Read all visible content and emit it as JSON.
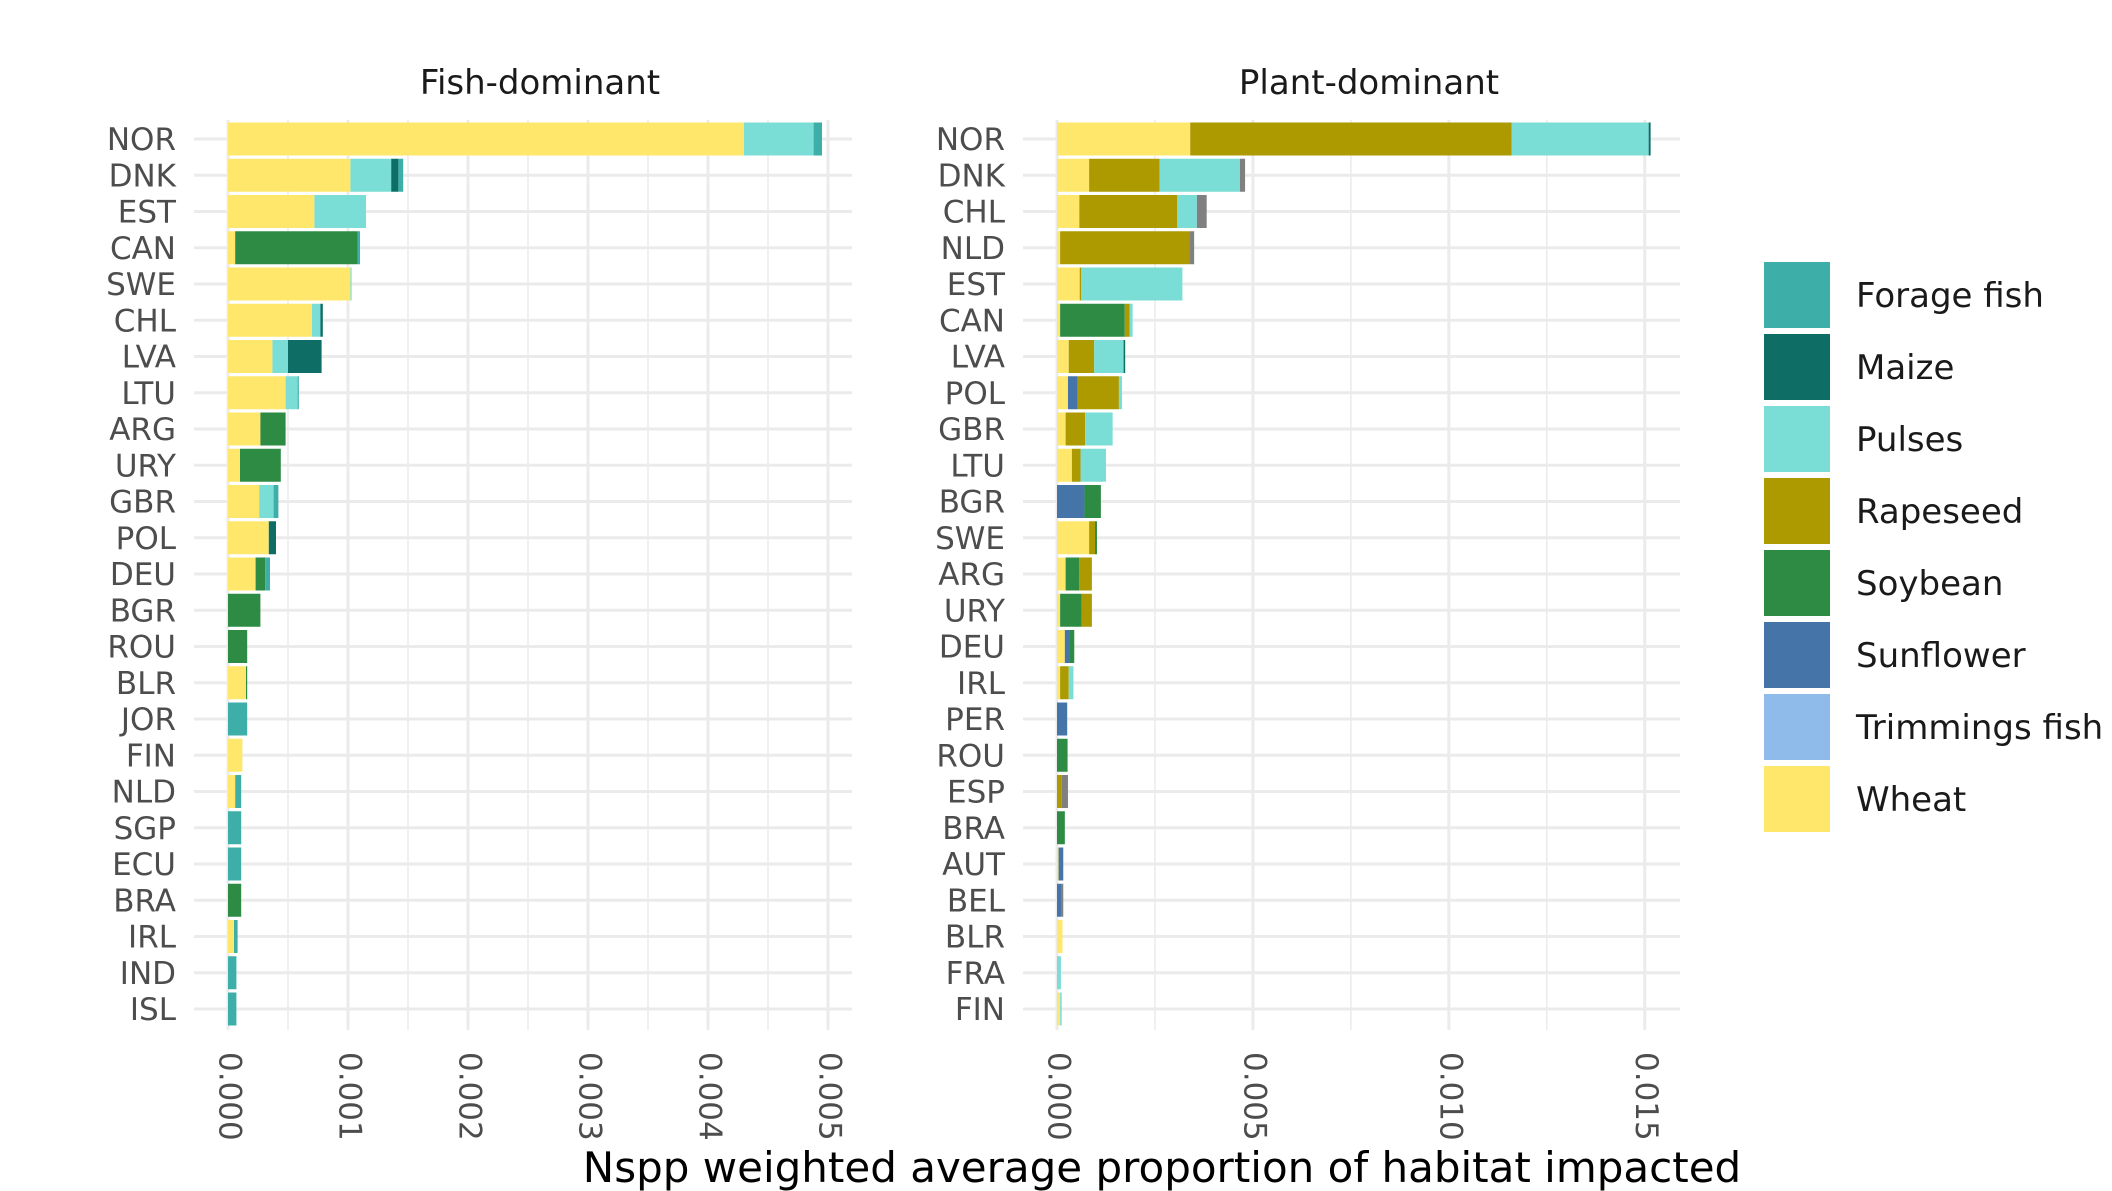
{
  "chart_data": {
    "type": "bar",
    "orientation": "horizontal",
    "stacked": true,
    "xlabel": "Nspp weighted average proportion of habitat impacted",
    "ylabel": "",
    "legend": {
      "position": "right",
      "title": "",
      "entries": [
        {
          "name": "Forage fish",
          "color": "#3dafa8"
        },
        {
          "name": "Maize",
          "color": "#0e6e66"
        },
        {
          "name": "Pulses",
          "color": "#7bded6"
        },
        {
          "name": "Rapeseed",
          "color": "#ac9a00"
        },
        {
          "name": "Soybean",
          "color": "#2e8b43"
        },
        {
          "name": "Sunflower",
          "color": "#4575a8"
        },
        {
          "name": "Trimmings fish",
          "color": "#8fbbeb"
        },
        {
          "name": "Wheat",
          "color": "#ffe76b"
        }
      ]
    },
    "other_color": "#808080",
    "grid": true,
    "panels": [
      {
        "title": "Fish-dominant",
        "xlim": [
          0,
          0.0052
        ],
        "xticks": [
          "0.000",
          "0.001",
          "0.002",
          "0.003",
          "0.004",
          "0.005"
        ],
        "xtick_values": [
          0,
          0.001,
          0.002,
          0.003,
          0.004,
          0.005
        ],
        "categories": [
          "NOR",
          "DNK",
          "EST",
          "CAN",
          "SWE",
          "CHL",
          "LVA",
          "LTU",
          "ARG",
          "URY",
          "GBR",
          "POL",
          "DEU",
          "BGR",
          "ROU",
          "BLR",
          "JOR",
          "FIN",
          "NLD",
          "SGP",
          "ECU",
          "BRA",
          "IRL",
          "IND",
          "ISL"
        ],
        "bars": [
          [
            {
              "s": "Wheat",
              "v": 0.0043
            },
            {
              "s": "Pulses",
              "v": 0.00058
            },
            {
              "s": "Forage fish",
              "v": 7e-05
            }
          ],
          [
            {
              "s": "Wheat",
              "v": 0.00102
            },
            {
              "s": "Pulses",
              "v": 0.00034
            },
            {
              "s": "Maize",
              "v": 6e-05
            },
            {
              "s": "Forage fish",
              "v": 4e-05
            }
          ],
          [
            {
              "s": "Wheat",
              "v": 0.00072
            },
            {
              "s": "Pulses",
              "v": 0.00043
            }
          ],
          [
            {
              "s": "Wheat",
              "v": 6e-05
            },
            {
              "s": "Soybean",
              "v": 0.00102
            },
            {
              "s": "Forage fish",
              "v": 2e-05
            }
          ],
          [
            {
              "s": "Wheat",
              "v": 0.00102
            },
            {
              "s": "Pulses",
              "v": 1e-05
            }
          ],
          [
            {
              "s": "Wheat",
              "v": 0.0007
            },
            {
              "s": "Pulses",
              "v": 7e-05
            },
            {
              "s": "Maize",
              "v": 2e-05
            }
          ],
          [
            {
              "s": "Wheat",
              "v": 0.00037
            },
            {
              "s": "Pulses",
              "v": 0.00013
            },
            {
              "s": "Maize",
              "v": 0.00028
            }
          ],
          [
            {
              "s": "Wheat",
              "v": 0.00048
            },
            {
              "s": "Pulses",
              "v": 0.0001
            },
            {
              "s": "Forage fish",
              "v": 1e-05
            }
          ],
          [
            {
              "s": "Wheat",
              "v": 0.00027
            },
            {
              "s": "Soybean",
              "v": 0.00021
            }
          ],
          [
            {
              "s": "Wheat",
              "v": 0.0001
            },
            {
              "s": "Soybean",
              "v": 0.00034
            }
          ],
          [
            {
              "s": "Wheat",
              "v": 0.00026
            },
            {
              "s": "Pulses",
              "v": 0.00012
            },
            {
              "s": "Forage fish",
              "v": 4e-05
            }
          ],
          [
            {
              "s": "Wheat",
              "v": 0.00034
            },
            {
              "s": "Maize",
              "v": 6e-05
            }
          ],
          [
            {
              "s": "Wheat",
              "v": 0.00023
            },
            {
              "s": "Soybean",
              "v": 8e-05
            },
            {
              "s": "Forage fish",
              "v": 4e-05
            }
          ],
          [
            {
              "s": "Soybean",
              "v": 0.00027
            }
          ],
          [
            {
              "s": "Soybean",
              "v": 0.00016
            }
          ],
          [
            {
              "s": "Wheat",
              "v": 0.00015
            },
            {
              "s": "Soybean",
              "v": 1e-05
            }
          ],
          [
            {
              "s": "Forage fish",
              "v": 0.00016
            }
          ],
          [
            {
              "s": "Wheat",
              "v": 0.00012
            }
          ],
          [
            {
              "s": "Wheat",
              "v": 6e-05
            },
            {
              "s": "Forage fish",
              "v": 5e-05
            }
          ],
          [
            {
              "s": "Forage fish",
              "v": 0.00011
            }
          ],
          [
            {
              "s": "Forage fish",
              "v": 0.00011
            }
          ],
          [
            {
              "s": "Soybean",
              "v": 0.00011
            }
          ],
          [
            {
              "s": "Wheat",
              "v": 5e-05
            },
            {
              "s": "Forage fish",
              "v": 3e-05
            }
          ],
          [
            {
              "s": "Forage fish",
              "v": 7e-05
            }
          ],
          [
            {
              "s": "Forage fish",
              "v": 7e-05
            }
          ]
        ]
      },
      {
        "title": "Plant-dominant",
        "xlim": [
          0,
          0.0159
        ],
        "xticks": [
          "0.000",
          "0.005",
          "0.010",
          "0.015"
        ],
        "xtick_values": [
          0,
          0.005,
          0.01,
          0.015
        ],
        "categories": [
          "NOR",
          "DNK",
          "CHL",
          "NLD",
          "EST",
          "CAN",
          "LVA",
          "POL",
          "GBR",
          "LTU",
          "BGR",
          "SWE",
          "ARG",
          "URY",
          "DEU",
          "IRL",
          "PER",
          "ROU",
          "ESP",
          "BRA",
          "AUT",
          "BEL",
          "BLR",
          "FRA",
          "FIN"
        ],
        "bars": [
          [
            {
              "s": "Wheat",
              "v": 0.0034
            },
            {
              "s": "Rapeseed",
              "v": 0.0082
            },
            {
              "s": "Pulses",
              "v": 0.0035
            },
            {
              "s": "Maize",
              "v": 5e-05
            }
          ],
          [
            {
              "s": "Wheat",
              "v": 0.00082
            },
            {
              "s": "Rapeseed",
              "v": 0.0018
            },
            {
              "s": "Pulses",
              "v": 0.00205
            },
            {
              "s": "Other",
              "v": 0.00013
            }
          ],
          [
            {
              "s": "Wheat",
              "v": 0.00057
            },
            {
              "s": "Rapeseed",
              "v": 0.0025
            },
            {
              "s": "Pulses",
              "v": 0.0005
            },
            {
              "s": "Other",
              "v": 0.00025
            }
          ],
          [
            {
              "s": "Wheat",
              "v": 8e-05
            },
            {
              "s": "Rapeseed",
              "v": 0.0033
            },
            {
              "s": "Other",
              "v": 0.00012
            }
          ],
          [
            {
              "s": "Wheat",
              "v": 0.00058
            },
            {
              "s": "Rapeseed",
              "v": 4e-05
            },
            {
              "s": "Pulses",
              "v": 0.00258
            }
          ],
          [
            {
              "s": "Wheat",
              "v": 8e-05
            },
            {
              "s": "Soybean",
              "v": 0.00165
            },
            {
              "s": "Rapeseed",
              "v": 0.00012
            },
            {
              "s": "Pulses",
              "v": 8e-05
            }
          ],
          [
            {
              "s": "Wheat",
              "v": 0.0003
            },
            {
              "s": "Rapeseed",
              "v": 0.00065
            },
            {
              "s": "Pulses",
              "v": 0.00075
            },
            {
              "s": "Maize",
              "v": 4e-05
            }
          ],
          [
            {
              "s": "Wheat",
              "v": 0.00028
            },
            {
              "s": "Sunflower",
              "v": 0.00025
            },
            {
              "s": "Rapeseed",
              "v": 0.00105
            },
            {
              "s": "Pulses",
              "v": 8e-05
            }
          ],
          [
            {
              "s": "Wheat",
              "v": 0.00022
            },
            {
              "s": "Rapeseed",
              "v": 0.0005
            },
            {
              "s": "Pulses",
              "v": 0.0007
            }
          ],
          [
            {
              "s": "Wheat",
              "v": 0.00038
            },
            {
              "s": "Rapeseed",
              "v": 0.00022
            },
            {
              "s": "Pulses",
              "v": 0.00065
            }
          ],
          [
            {
              "s": "Sunflower",
              "v": 0.0007
            },
            {
              "s": "Soybean",
              "v": 0.00042
            }
          ],
          [
            {
              "s": "Wheat",
              "v": 0.00082
            },
            {
              "s": "Rapeseed",
              "v": 0.00015
            },
            {
              "s": "Soybean",
              "v": 5e-05
            }
          ],
          [
            {
              "s": "Wheat",
              "v": 0.00022
            },
            {
              "s": "Soybean",
              "v": 0.00035
            },
            {
              "s": "Rapeseed",
              "v": 0.00032
            }
          ],
          [
            {
              "s": "Wheat",
              "v": 8e-05
            },
            {
              "s": "Soybean",
              "v": 0.00055
            },
            {
              "s": "Rapeseed",
              "v": 0.00026
            }
          ],
          [
            {
              "s": "Wheat",
              "v": 0.0002
            },
            {
              "s": "Sunflower",
              "v": 0.00012
            },
            {
              "s": "Soybean",
              "v": 0.00012
            }
          ],
          [
            {
              "s": "Wheat",
              "v": 8e-05
            },
            {
              "s": "Rapeseed",
              "v": 0.00022
            },
            {
              "s": "Pulses",
              "v": 0.00012
            }
          ],
          [
            {
              "s": "Sunflower",
              "v": 0.00026
            }
          ],
          [
            {
              "s": "Soybean",
              "v": 0.00027
            }
          ],
          [
            {
              "s": "Rapeseed",
              "v": 0.00012
            },
            {
              "s": "Other",
              "v": 0.00016
            }
          ],
          [
            {
              "s": "Soybean",
              "v": 0.0002
            }
          ],
          [
            {
              "s": "Wheat",
              "v": 4e-05
            },
            {
              "s": "Sunflower",
              "v": 0.00012
            }
          ],
          [
            {
              "s": "Sunflower",
              "v": 0.00012
            },
            {
              "s": "Other",
              "v": 4e-05
            }
          ],
          [
            {
              "s": "Wheat",
              "v": 0.00014
            }
          ],
          [
            {
              "s": "Pulses",
              "v": 0.0001
            }
          ],
          [
            {
              "s": "Wheat",
              "v": 8e-05
            },
            {
              "s": "Pulses",
              "v": 4e-05
            }
          ]
        ]
      }
    ]
  }
}
